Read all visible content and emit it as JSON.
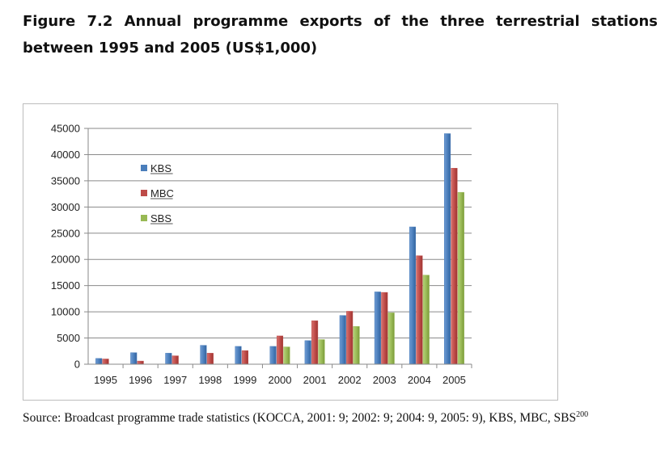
{
  "figure": {
    "title": "Figure 7.2 Annual programme exports of the three terrestrial stations between 1995 and 2005 (US$1,000)"
  },
  "source": {
    "text": "Source: Broadcast programme trade statistics (KOCCA, 2001: 9; 2002: 9; 2004: 9, 2005: 9), KBS, MBC, SBS",
    "footnote": "200"
  },
  "chart_data": {
    "type": "bar",
    "title": "",
    "xlabel": "",
    "ylabel": "",
    "ylim": [
      0,
      45000
    ],
    "yticks": [
      0,
      5000,
      10000,
      15000,
      20000,
      25000,
      30000,
      35000,
      40000,
      45000
    ],
    "grid": true,
    "legend_position": "top-left",
    "categories": [
      "1995",
      "1996",
      "1997",
      "1998",
      "1999",
      "2000",
      "2001",
      "2002",
      "2003",
      "2004",
      "2005"
    ],
    "series": [
      {
        "name": "KBS",
        "color": "#4a7ebb",
        "values": [
          1100,
          2200,
          2100,
          3600,
          3400,
          3400,
          4500,
          9300,
          13800,
          26200,
          44000
        ]
      },
      {
        "name": "MBC",
        "color": "#be4b48",
        "values": [
          1000,
          600,
          1600,
          2100,
          2600,
          5400,
          8300,
          10100,
          13700,
          20700,
          37400
        ]
      },
      {
        "name": "SBS",
        "color": "#98b954",
        "values": [
          0,
          0,
          0,
          0,
          0,
          3300,
          4700,
          7200,
          9800,
          17000,
          32800
        ]
      }
    ]
  }
}
